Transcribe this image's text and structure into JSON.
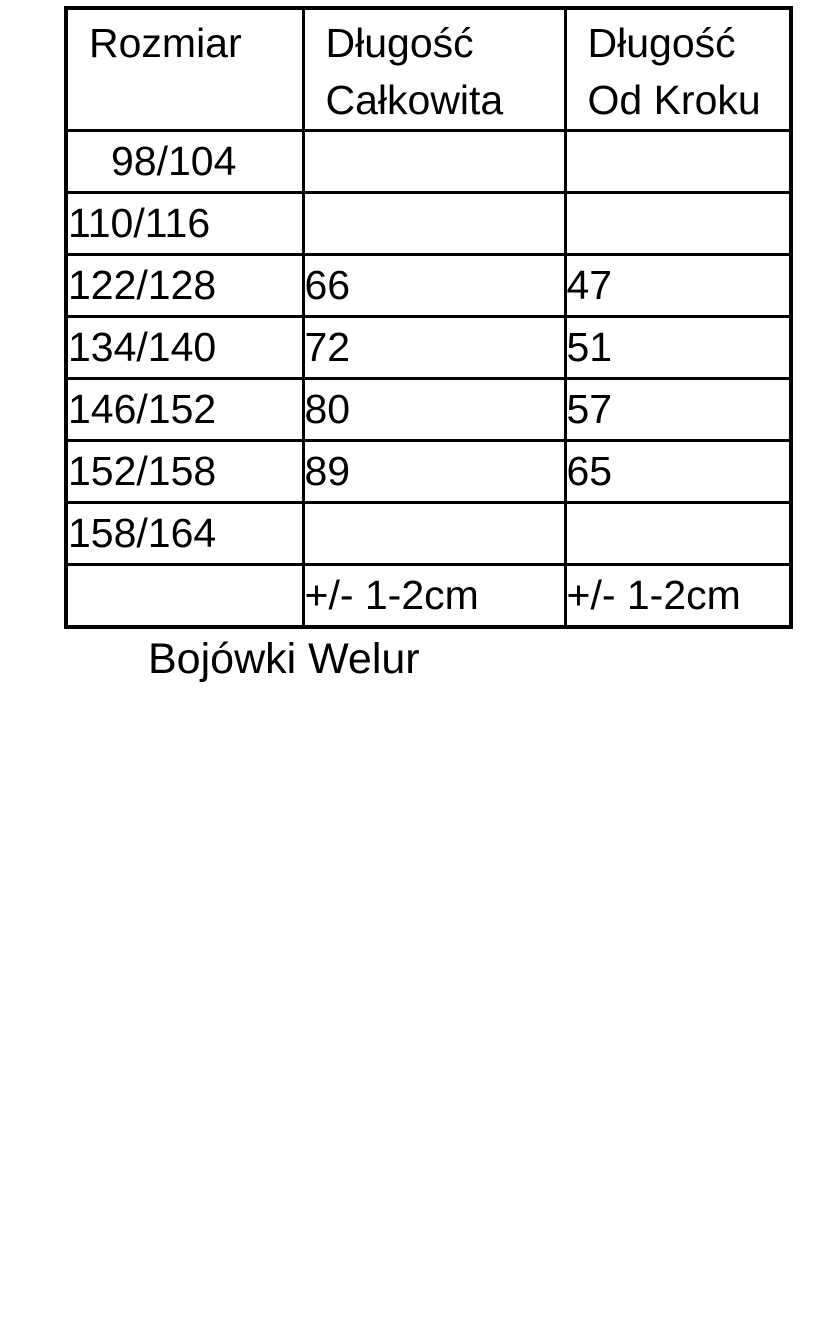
{
  "table": {
    "headers": [
      {
        "line1": "Rozmiar",
        "line2": ""
      },
      {
        "line1": "Długość",
        "line2": "Całkowita"
      },
      {
        "line1": "Długość",
        "line2": "Od Kroku"
      }
    ],
    "rows": [
      {
        "size": "98/104",
        "total": "",
        "inseam": "",
        "indent": true,
        "tolerance": false
      },
      {
        "size": "110/116",
        "total": "",
        "inseam": "",
        "indent": false,
        "tolerance": false
      },
      {
        "size": "122/128",
        "total": "66",
        "inseam": "47",
        "indent": false,
        "tolerance": false
      },
      {
        "size": "134/140",
        "total": "72",
        "inseam": "51",
        "indent": false,
        "tolerance": false
      },
      {
        "size": "146/152",
        "total": "80",
        "inseam": "57",
        "indent": false,
        "tolerance": false
      },
      {
        "size": "152/158",
        "total": "89",
        "inseam": "65",
        "indent": false,
        "tolerance": false
      },
      {
        "size": "158/164",
        "total": "",
        "inseam": "",
        "indent": false,
        "tolerance": false
      },
      {
        "size": "",
        "total": "+/- 1-2cm",
        "inseam": "+/- 1-2cm",
        "indent": false,
        "tolerance": true
      }
    ],
    "caption": "Bojówki Welur"
  },
  "colors": {
    "text": "#000000",
    "border": "#000000",
    "background": "#ffffff"
  }
}
